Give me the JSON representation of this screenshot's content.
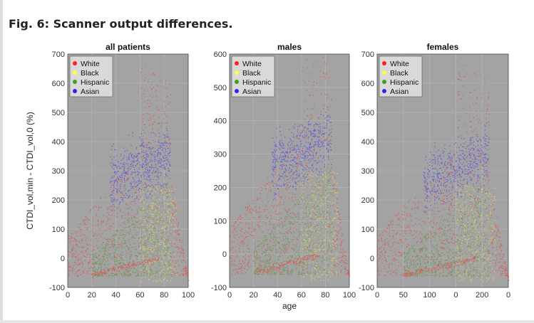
{
  "figure_title": "Fig. 6: Scanner output differences.",
  "chart_data": [
    {
      "type": "scatter",
      "title": "all patients",
      "xlabel": "",
      "ylabel": "CTDI_vol,min - CTDI_vol,0 (%)",
      "xlim": [
        0,
        100
      ],
      "ylim": [
        -100,
        700
      ],
      "xticks": [
        "0",
        "20",
        "40",
        "60",
        "80",
        "100"
      ],
      "yticks": [
        "-100",
        "0",
        "100",
        "200",
        "300",
        "400",
        "500",
        "600",
        "700"
      ],
      "grid": true,
      "legend": "top-left",
      "series": [
        {
          "name": "White",
          "color": "#ff2020"
        },
        {
          "name": "Black",
          "color": "#ffff40"
        },
        {
          "name": "Hispanic",
          "color": "#40a020"
        },
        {
          "name": "Asian",
          "color": "#3020ff"
        }
      ]
    },
    {
      "type": "scatter",
      "title": "males",
      "xlabel": "age",
      "ylabel": "",
      "xlim": [
        0,
        100
      ],
      "ylim": [
        -100,
        600
      ],
      "xticks": [
        "0",
        "20",
        "40",
        "60",
        "80",
        "100"
      ],
      "yticks": [
        "-100",
        "0",
        "100",
        "200",
        "300",
        "400",
        "500",
        "600"
      ],
      "grid": true,
      "legend": "top-left",
      "series": [
        {
          "name": "White",
          "color": "#ff2020"
        },
        {
          "name": "Black",
          "color": "#ffff40"
        },
        {
          "name": "Hispanic",
          "color": "#40a020"
        },
        {
          "name": "Asian",
          "color": "#3020ff"
        }
      ]
    },
    {
      "type": "scatter",
      "title": "females",
      "xlabel": "",
      "ylabel": "",
      "xlim": [
        0,
        250
      ],
      "ylim": [
        -100,
        700
      ],
      "xticks": [
        "0",
        "50",
        "100",
        "0",
        "200",
        "0"
      ],
      "yticks": [
        "-100",
        "0",
        "100",
        "200",
        "300",
        "400",
        "500",
        "600",
        "700"
      ],
      "grid": true,
      "legend": "top-left",
      "series": [
        {
          "name": "White",
          "color": "#ff2020"
        },
        {
          "name": "Black",
          "color": "#ffff40"
        },
        {
          "name": "Hispanic",
          "color": "#40a020"
        },
        {
          "name": "Asian",
          "color": "#3020ff"
        }
      ]
    }
  ]
}
